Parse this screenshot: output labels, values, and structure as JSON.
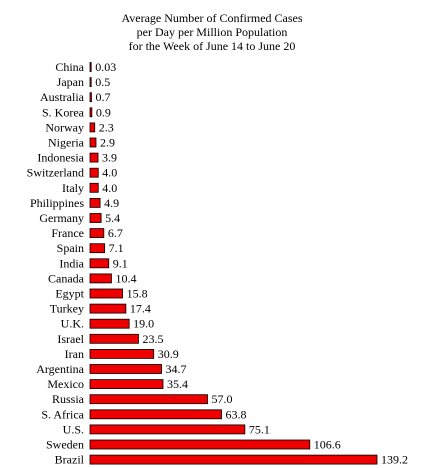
{
  "chart_data": {
    "type": "bar",
    "orientation": "horizontal",
    "title": [
      "Average Number of Confirmed Cases",
      "per Day per Million Population",
      "for the Week of June 14 to June 20"
    ],
    "xlabel": "",
    "ylabel": "",
    "categories": [
      "China",
      "Japan",
      "Australia",
      "S. Korea",
      "Norway",
      "Nigeria",
      "Indonesia",
      "Switzerland",
      "Italy",
      "Philippines",
      "Germany",
      "France",
      "Spain",
      "India",
      "Canada",
      "Egypt",
      "Turkey",
      "U.K.",
      "Israel",
      "Iran",
      "Argentina",
      "Mexico",
      "Russia",
      "S. Africa",
      "U.S.",
      "Sweden",
      "Brazil"
    ],
    "values": [
      0.03,
      0.5,
      0.7,
      0.9,
      2.3,
      2.9,
      3.9,
      4.0,
      4.0,
      4.9,
      5.4,
      6.7,
      7.1,
      9.1,
      10.4,
      15.8,
      17.4,
      19.0,
      23.5,
      30.9,
      34.7,
      35.4,
      57.0,
      63.8,
      75.1,
      106.6,
      139.2
    ],
    "value_labels": [
      "0.03",
      "0.5",
      "0.7",
      "0.9",
      "2.3",
      "2.9",
      "3.9",
      "4.0",
      "4.0",
      "4.9",
      "5.4",
      "6.7",
      "7.1",
      "9.1",
      "10.4",
      "15.8",
      "17.4",
      "19.0",
      "23.5",
      "30.9",
      "34.7",
      "35.4",
      "57.0",
      "63.8",
      "75.1",
      "106.6",
      "139.2"
    ],
    "bar_color": "#ee0000",
    "bar_stroke": "#000000",
    "grid": false,
    "legend": "none"
  }
}
